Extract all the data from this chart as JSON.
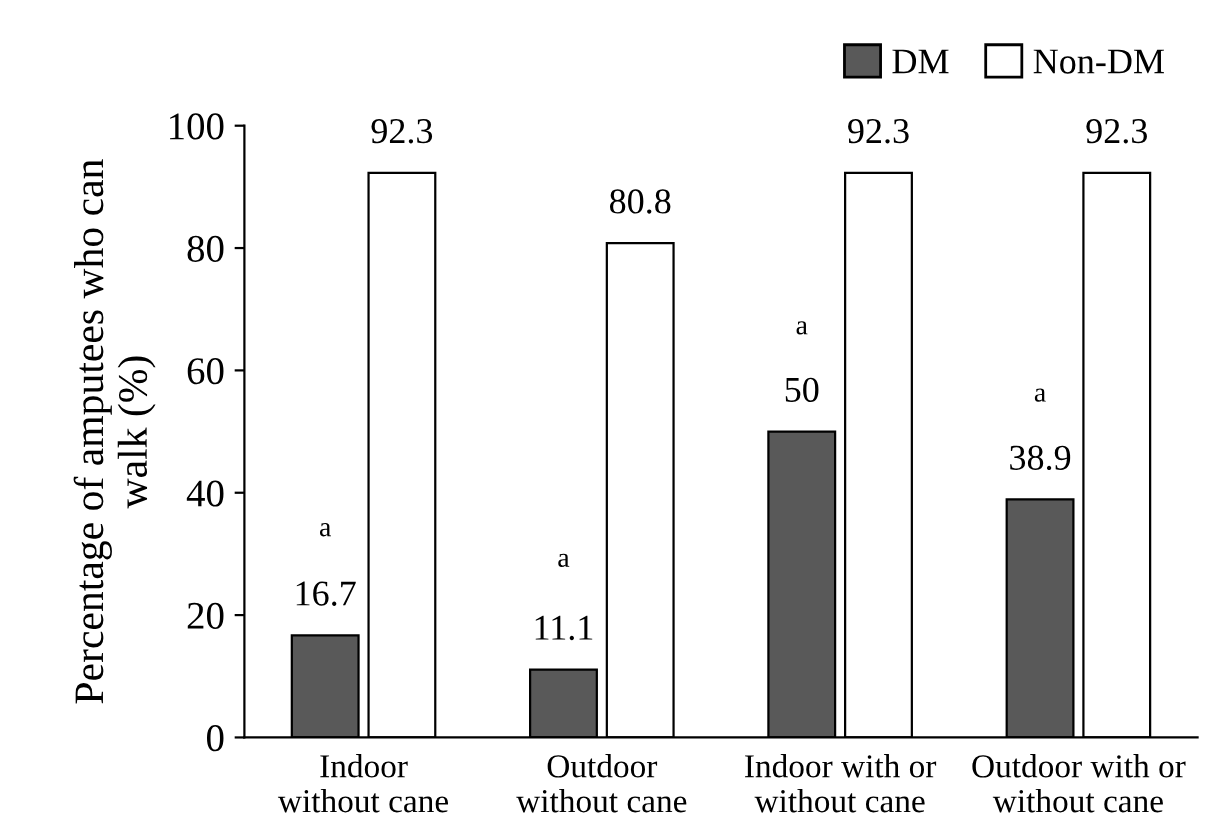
{
  "chart_data": {
    "type": "bar",
    "ylabel": "Percentage of amputees who can\nwalk (%)",
    "categories": [
      "Indoor\nwithout cane",
      "Outdoor\nwithout cane",
      "Indoor with or\nwithout cane",
      "Outdoor with or\nwithout cane"
    ],
    "series": [
      {
        "name": "DM",
        "color": "#595959",
        "values": [
          16.7,
          11.1,
          50,
          38.9
        ]
      },
      {
        "name": "Non-DM",
        "color": "#ffffff",
        "values": [
          92.3,
          80.8,
          92.3,
          92.3
        ]
      }
    ],
    "ylim": [
      0,
      100
    ],
    "yticks": [
      0,
      20,
      40,
      60,
      80,
      100
    ],
    "data_labels": true,
    "grid": false,
    "legend": "top right",
    "annotations": [
      {
        "text": "a",
        "x": "Indoor\nwithout cane",
        "y": 34
      },
      {
        "text": "a",
        "x": "Outdoor\nwithout cane",
        "y": 29
      },
      {
        "text": "a",
        "x": "Indoor with or\nwithout cane",
        "y": 67
      },
      {
        "text": "a",
        "x": "Outdoor with or\nwithout cane",
        "y": 56
      }
    ]
  }
}
